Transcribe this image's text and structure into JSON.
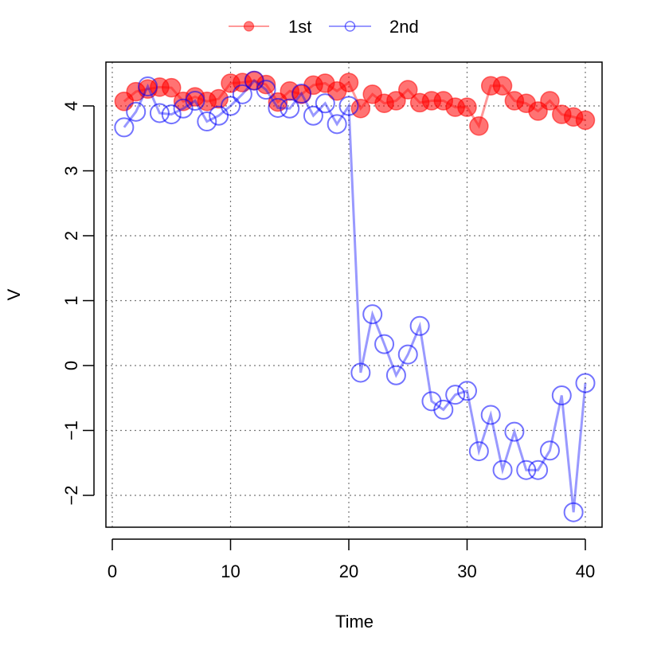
{
  "chart_data": {
    "type": "line",
    "xlabel": "Time",
    "ylabel": "V",
    "xlim": [
      0,
      41.5
    ],
    "ylim": [
      -2.5,
      4.7
    ],
    "x_ticks": [
      0,
      10,
      20,
      30,
      40
    ],
    "y_ticks": [
      -2,
      -1,
      0,
      1,
      2,
      3,
      4
    ],
    "grid": true,
    "legend_position": "top-center",
    "series": [
      {
        "name": "1st",
        "color": "#ff0000",
        "marker": "filled-circle",
        "x": [
          1,
          2,
          3,
          4,
          5,
          6,
          7,
          8,
          9,
          10,
          11,
          12,
          13,
          14,
          15,
          16,
          17,
          18,
          19,
          20,
          21,
          22,
          23,
          24,
          25,
          26,
          27,
          28,
          29,
          30,
          31,
          32,
          33,
          34,
          35,
          36,
          37,
          38,
          39,
          40
        ],
        "values": [
          4.07,
          4.22,
          4.26,
          4.29,
          4.28,
          4.07,
          4.14,
          4.07,
          4.11,
          4.35,
          4.36,
          4.39,
          4.33,
          4.06,
          4.23,
          4.18,
          4.32,
          4.35,
          4.23,
          4.36,
          3.96,
          4.18,
          4.04,
          4.08,
          4.25,
          4.05,
          4.08,
          4.08,
          3.98,
          3.98,
          3.69,
          4.31,
          4.31,
          4.08,
          4.04,
          3.92,
          4.08,
          3.87,
          3.83,
          3.78
        ]
      },
      {
        "name": "2nd",
        "color": "#0000ff",
        "marker": "open-circle",
        "x": [
          1,
          2,
          3,
          4,
          5,
          6,
          7,
          8,
          9,
          10,
          11,
          12,
          13,
          14,
          15,
          16,
          17,
          18,
          19,
          20,
          21,
          22,
          23,
          24,
          25,
          26,
          27,
          28,
          29,
          30,
          31,
          32,
          33,
          34,
          35,
          36,
          37,
          38,
          39,
          40
        ],
        "values": [
          3.67,
          3.91,
          4.3,
          3.89,
          3.87,
          3.96,
          4.08,
          3.76,
          3.85,
          4.0,
          4.18,
          4.39,
          4.25,
          3.97,
          3.96,
          4.19,
          3.85,
          4.04,
          3.72,
          4.0,
          -0.11,
          0.79,
          0.33,
          -0.15,
          0.17,
          0.61,
          -0.55,
          -0.68,
          -0.45,
          -0.39,
          -1.32,
          -0.76,
          -1.61,
          -1.02,
          -1.61,
          -1.61,
          -1.31,
          -0.46,
          -2.26,
          -0.27
        ]
      }
    ]
  }
}
